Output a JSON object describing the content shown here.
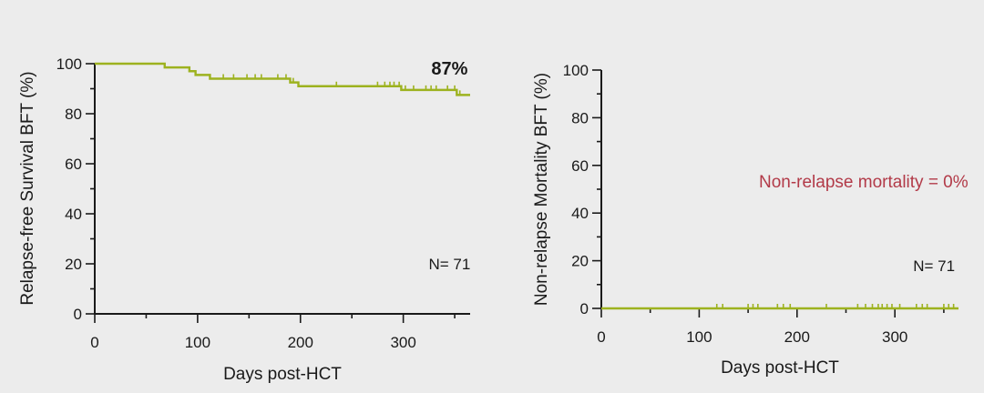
{
  "colors": {
    "background": "#ececec",
    "axis": "#1a1a1a",
    "curve": "#9db21f",
    "annotation_red": "#b23a48",
    "text": "#1a1a1a"
  },
  "chart_data": [
    {
      "type": "line",
      "ylabel": "Relapse-free Survival BFT (%)",
      "xlabel": "Days post-HCT",
      "xlim": [
        0,
        365
      ],
      "ylim": [
        0,
        100
      ],
      "xticks": [
        0,
        100,
        200,
        300
      ],
      "yticks": [
        0,
        20,
        40,
        60,
        80,
        100
      ],
      "annotations": [
        {
          "text": "87%",
          "x": 345,
          "y": 100
        },
        {
          "text": "N= 71",
          "x": 345,
          "y": 20
        }
      ],
      "series": [
        {
          "step": true,
          "x": [
            0,
            68,
            92,
            98,
            112,
            190,
            198,
            298,
            352,
            365
          ],
          "y": [
            100,
            98.5,
            97,
            95.5,
            94,
            92.5,
            91,
            89.5,
            87.5,
            87.5
          ],
          "censor_x": [
            125,
            135,
            148,
            156,
            162,
            178,
            186,
            193,
            235,
            275,
            282,
            287,
            291,
            296,
            302,
            310,
            322,
            327,
            332,
            343,
            350,
            355
          ]
        }
      ]
    },
    {
      "type": "line",
      "ylabel": "Non-relapse Mortality BFT (%)",
      "xlabel": "Days post-HCT",
      "xlim": [
        0,
        365
      ],
      "ylim": [
        0,
        100
      ],
      "xticks": [
        0,
        100,
        200,
        300
      ],
      "yticks": [
        0,
        20,
        40,
        60,
        80,
        100
      ],
      "annotations": [
        {
          "text": "Non-relapse mortality = 0%",
          "x": 268,
          "y": 53,
          "color": "red"
        },
        {
          "text": "N= 71",
          "x": 340,
          "y": 18
        }
      ],
      "series": [
        {
          "step": true,
          "x": [
            0,
            365
          ],
          "y": [
            0,
            0
          ],
          "censor_x": [
            118,
            124,
            150,
            155,
            160,
            180,
            186,
            193,
            230,
            262,
            270,
            277,
            283,
            287,
            292,
            297,
            305,
            322,
            328,
            333,
            350,
            355,
            360
          ]
        }
      ]
    }
  ]
}
